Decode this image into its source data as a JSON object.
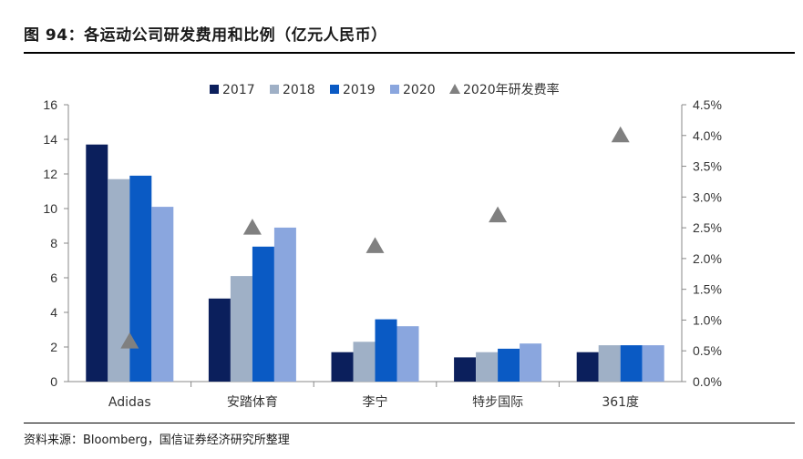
{
  "header": {
    "title": "图 94：各运动公司研发费用和比例（亿元人民币）"
  },
  "footer": {
    "source": "资料来源：Bloomberg，国信证券经济研究所整理"
  },
  "chart_data": {
    "type": "bar",
    "categories": [
      "Adidas",
      "安踏体育",
      "李宁",
      "特步国际",
      "361度"
    ],
    "series": [
      {
        "name": "2017",
        "values": [
          13.7,
          4.8,
          1.7,
          1.4,
          1.7
        ],
        "color": "#0b1f5c"
      },
      {
        "name": "2018",
        "values": [
          11.7,
          6.1,
          2.3,
          1.7,
          2.1
        ],
        "color": "#9fb0c6"
      },
      {
        "name": "2019",
        "values": [
          11.9,
          7.8,
          3.6,
          1.9,
          2.1
        ],
        "color": "#0a5ac4"
      },
      {
        "name": "2020",
        "values": [
          10.1,
          8.9,
          3.2,
          2.2,
          2.1
        ],
        "color": "#8aa6de"
      }
    ],
    "secondary_series": {
      "name": "2020年研发费率",
      "type": "scatter",
      "marker": "triangle",
      "color": "#808080",
      "values": [
        0.0065,
        0.025,
        0.022,
        0.027,
        0.04
      ]
    },
    "y_left": {
      "min": 0,
      "max": 16,
      "ticks": [
        0,
        2,
        4,
        6,
        8,
        10,
        12,
        14,
        16
      ]
    },
    "y_right": {
      "min": 0,
      "max": 0.045,
      "ticks": [
        0,
        0.005,
        0.01,
        0.015,
        0.02,
        0.025,
        0.03,
        0.035,
        0.04,
        0.045
      ],
      "tick_labels": [
        "0.0%",
        "0.5%",
        "1.0%",
        "1.5%",
        "2.0%",
        "2.5%",
        "3.0%",
        "3.5%",
        "4.0%",
        "4.5%"
      ]
    },
    "legend": {
      "position": "top-center"
    },
    "grid": false
  }
}
